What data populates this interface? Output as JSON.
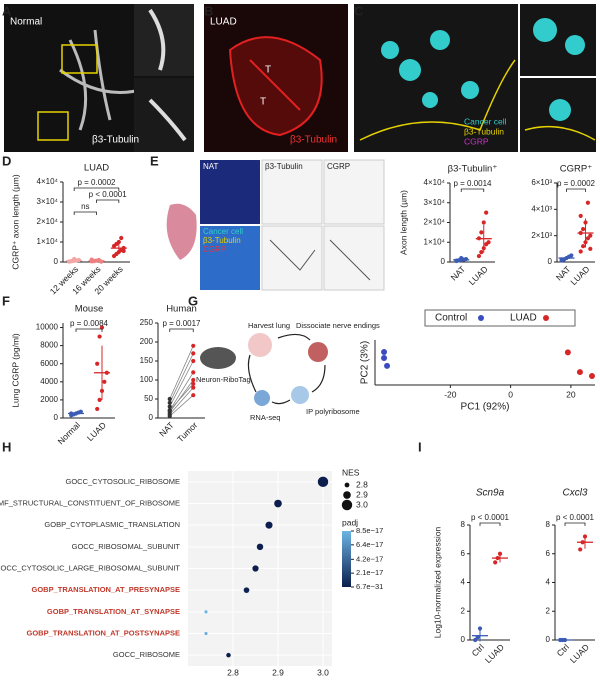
{
  "panel_labels": [
    "A",
    "B",
    "C",
    "D",
    "E",
    "F",
    "G",
    "H",
    "I"
  ],
  "images": {
    "A": {
      "title": "Normal",
      "stain": "β3-Tubulin"
    },
    "B": {
      "title": "LUAD",
      "stain": "β3-Tubulin",
      "tumor_marks": [
        "T",
        "T"
      ]
    },
    "C": {
      "legend": [
        "Cancer cell",
        "β3-Tubulin",
        "CGRP"
      ]
    },
    "E": {
      "top": [
        "NAT",
        "β3-Tubulin",
        "CGRP"
      ],
      "bottom_legend": [
        "Cancer cell",
        "β3-Tubulin",
        "CGRP"
      ]
    }
  },
  "diagram": {
    "steps": [
      "Harvest lung",
      "Dissociate nerve endings",
      "IP polyribosome",
      "RNA-seq"
    ],
    "mouse": "Neuron-RiboTag"
  },
  "chart_data": [
    {
      "type": "dot",
      "title": "LUAD",
      "y_label": "CGRP⁺ axon length (µm)",
      "ylim": [
        0,
        40000
      ],
      "yticks": [
        0,
        {
          "value": 10000,
          "label": "1×10⁴"
        },
        {
          "value": 20000,
          "label": "2×10⁴"
        },
        {
          "value": 30000,
          "label": "3×10⁴"
        },
        {
          "value": 40000,
          "label": "4×10⁴"
        }
      ],
      "groups": [
        {
          "name": "12 weeks",
          "color": "#f4a6a6",
          "points": [
            200,
            400,
            600,
            800,
            1000,
            300,
            500,
            1500
          ],
          "mean": 600,
          "sd": 400
        },
        {
          "name": "16 weeks",
          "color": "#ee8080",
          "points": [
            300,
            500,
            700,
            1000,
            200,
            1200,
            400
          ],
          "mean": 600,
          "sd": 350
        },
        {
          "name": "20 weeks",
          "color": "#d62728",
          "points": [
            3000,
            4000,
            5000,
            6000,
            7000,
            8000,
            9000,
            10000,
            12000,
            5500
          ],
          "mean": 6950,
          "sd": 2700
        }
      ],
      "annotations": [
        "p = 0.0002",
        "ns",
        "p < 0.0001"
      ]
    },
    {
      "type": "dot",
      "title": "β3-Tubulin⁺",
      "y_label": "Axon length (µm)",
      "ylim": [
        0,
        40000
      ],
      "yticks": [
        0,
        {
          "value": 10000,
          "label": "1×10⁴"
        },
        {
          "value": 20000,
          "label": "2×10⁴"
        },
        {
          "value": 30000,
          "label": "3×10⁴"
        },
        {
          "value": 40000,
          "label": "4×10⁴"
        }
      ],
      "groups": [
        {
          "name": "NAT",
          "color": "#3b5bb5",
          "points": [
            500,
            800,
            1000,
            1200,
            1500,
            700,
            900,
            2000
          ],
          "mean": 1100,
          "sd": 500
        },
        {
          "name": "LUAD",
          "color": "#d62728",
          "points": [
            3000,
            5000,
            7000,
            9000,
            10000,
            12000,
            15000,
            20000,
            25000
          ],
          "mean": 11800,
          "sd": 7000
        }
      ],
      "annotations": [
        "p = 0.0014"
      ]
    },
    {
      "type": "dot",
      "title": "CGRP⁺",
      "ylim": [
        0,
        6000
      ],
      "yticks": [
        0,
        {
          "value": 2000,
          "label": "2×10³"
        },
        {
          "value": 4000,
          "label": "4×10³"
        },
        {
          "value": 6000,
          "label": "6×10³"
        }
      ],
      "groups": [
        {
          "name": "NAT",
          "color": "#3b5bb5",
          "points": [
            100,
            200,
            300,
            400,
            500,
            200
          ],
          "mean": 300,
          "sd": 150
        },
        {
          "name": "LUAD",
          "color": "#d62728",
          "points": [
            800,
            1200,
            1500,
            1800,
            2000,
            2200,
            2500,
            3000,
            4500,
            1000,
            3500
          ],
          "mean": 2200,
          "sd": 1100
        }
      ],
      "annotations": [
        "p = 0.0002"
      ]
    },
    {
      "type": "dot",
      "title": "Mouse",
      "y_label": "Lung CGRP (pg/ml)",
      "ylim": [
        0,
        10500
      ],
      "yticks": [
        0,
        2000,
        4000,
        6000,
        8000,
        10000
      ],
      "groups": [
        {
          "name": "Normal",
          "color": "#3b5bb5",
          "points": [
            300,
            400,
            500,
            600,
            700,
            500
          ],
          "mean": 500,
          "sd": 150
        },
        {
          "name": "LUAD",
          "color": "#d62728",
          "points": [
            1000,
            2000,
            3000,
            4000,
            5000,
            6000,
            9000,
            10000
          ],
          "mean": 5000,
          "sd": 3000
        }
      ],
      "annotations": [
        "p = 0.0084"
      ]
    },
    {
      "type": "paired",
      "title": "Human",
      "ylim": [
        0,
        250
      ],
      "yticks": [
        0,
        50,
        100,
        150,
        200,
        250
      ],
      "groups": [
        {
          "name": "NAT",
          "color": "#333333",
          "points": [
            5,
            10,
            15,
            20,
            30,
            40,
            50,
            20
          ]
        },
        {
          "name": "Tumor",
          "color": "#d62728",
          "points": [
            60,
            80,
            100,
            120,
            150,
            170,
            190,
            90
          ]
        }
      ],
      "annotations": [
        "p = 0.0017"
      ]
    },
    {
      "type": "scatter",
      "x_label": "PC1 (92%)",
      "y_label": "PC2 (3%)",
      "xlim": [
        -45,
        28
      ],
      "ylim": [
        -2,
        2
      ],
      "xticks": [
        -20,
        0,
        20
      ],
      "legend": "top",
      "series": [
        {
          "name": "Control",
          "color": "#3b4cc0",
          "x": [
            -42,
            -42,
            -41
          ],
          "y": [
            0.93,
            0.4,
            -0.3
          ]
        },
        {
          "name": "LUAD",
          "color": "#d62728",
          "x": [
            19,
            23,
            27
          ],
          "y": [
            0.9,
            -0.85,
            -1.2
          ]
        }
      ]
    },
    {
      "type": "bubble",
      "categories": [
        "GOCC_CYTOSOLIC_RIBOSOME",
        "GOMF_STRUCTURAL_CONSTITUENT_OF_RIBOSOME",
        "GOBP_CYTOPLASMIC_TRANSLATION",
        "GOCC_RIBOSOMAL_SUBUNIT",
        "GOCC_CYTOSOLIC_LARGE_RIBOSOMAL_SUBUNIT",
        "GOBP_TRANSLATION_AT_PRESYNAPSE",
        "GOBP_TRANSLATION_AT_SYNAPSE",
        "GOBP_TRANSLATION_AT_POSTSYNAPSE",
        "GOCC_RIBOSOME"
      ],
      "label_colors": [
        "#333333",
        "#333333",
        "#333333",
        "#333333",
        "#333333",
        "#c0392b",
        "#c0392b",
        "#c0392b",
        "#333333"
      ],
      "values": [
        3.0,
        2.9,
        2.88,
        2.86,
        2.85,
        2.83,
        2.74,
        2.74,
        2.79
      ],
      "padj": [
        6.7e-31,
        1e-25,
        1e-24,
        1e-23,
        1e-22,
        2e-18,
        8.5e-17,
        8e-17,
        5e-20
      ],
      "xlim": [
        2.7,
        3.02
      ],
      "xticks": [
        2.8,
        2.9,
        {
          "value": 3.0,
          "label": "3.0"
        }
      ],
      "size_title": "NES",
      "size_ticks": [
        2.8,
        2.9,
        {
          "value": 3.0,
          "label": "3.0"
        }
      ],
      "color_title": "padj",
      "color_ticks": [
        {
          "value": 8.5e-17,
          "label": "8.5e−17"
        },
        {
          "value": 6.4e-17,
          "label": "6.4e−17"
        },
        {
          "value": 4.2e-17,
          "label": "4.2e−17"
        },
        {
          "value": 2.1e-17,
          "label": "2.1e−17"
        },
        {
          "value": 6.7e-31,
          "label": "6.7e−31"
        }
      ]
    },
    {
      "type": "dot",
      "title": "Scn9a",
      "y_label": "Log10-normalized expression",
      "ylim": [
        0,
        8
      ],
      "yticks": [
        0,
        2,
        4,
        6,
        8
      ],
      "groups": [
        {
          "name": "Ctrl",
          "color": "#3b5bb5",
          "points": [
            0,
            0.2,
            0.8
          ],
          "mean": 0.3,
          "sd": 0.4
        },
        {
          "name": "LUAD",
          "color": "#d62728",
          "points": [
            5.4,
            5.7,
            6.0
          ],
          "mean": 5.7,
          "sd": 0.3
        }
      ],
      "annotations": [
        "p < 0.0001"
      ]
    },
    {
      "type": "dot",
      "title": "Cxcl3",
      "y_label": "Log10-normalized expression",
      "ylim": [
        0,
        8
      ],
      "yticks": [
        0,
        2,
        4,
        6,
        8
      ],
      "groups": [
        {
          "name": "Ctrl",
          "color": "#3b5bb5",
          "points": [
            0,
            0,
            0
          ],
          "mean": 0,
          "sd": 0
        },
        {
          "name": "LUAD",
          "color": "#d62728",
          "points": [
            6.3,
            6.8,
            7.2
          ],
          "mean": 6.8,
          "sd": 0.45
        }
      ],
      "annotations": [
        "p < 0.0001"
      ]
    }
  ]
}
